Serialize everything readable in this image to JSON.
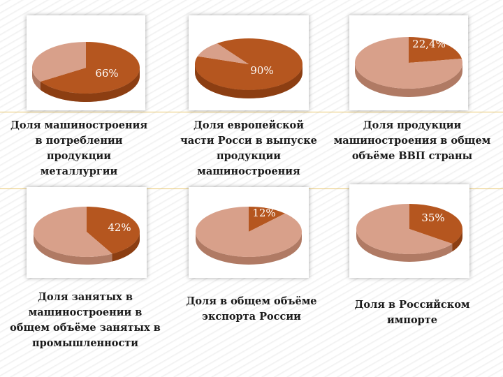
{
  "colors": {
    "dark": "#b5561f",
    "dark_side": "#8c3e12",
    "light": "#d8a08a",
    "light_side": "#b07a64",
    "label": "#ffffff"
  },
  "chart_data": [
    {
      "type": "pie",
      "values": [
        66,
        34
      ],
      "label": "66%",
      "caption": "Доля машиностроения\nв потреблении\nпродукции\nметаллургии"
    },
    {
      "type": "pie",
      "values": [
        90,
        10
      ],
      "label": "90%",
      "caption": "Доля европейской\nчасти Росси в выпуске\nпродукции\nмашиностроения"
    },
    {
      "type": "pie",
      "values": [
        22.4,
        77.6
      ],
      "label": "22,4%",
      "caption": "Доля продукции\nмашиностроения в общем\nобъёме ВВП страны"
    },
    {
      "type": "pie",
      "values": [
        42,
        58
      ],
      "label": "42%",
      "caption": "Доля занятых в\nмашиностроении в\nобщем объёме занятых в\nпромышленности"
    },
    {
      "type": "pie",
      "values": [
        12,
        88
      ],
      "label": "12%",
      "caption": "Доля в общем объёме\nэкспорта России"
    },
    {
      "type": "pie",
      "values": [
        35,
        65
      ],
      "label": "35%",
      "caption": "Доля в Российском\nимпорте"
    }
  ]
}
